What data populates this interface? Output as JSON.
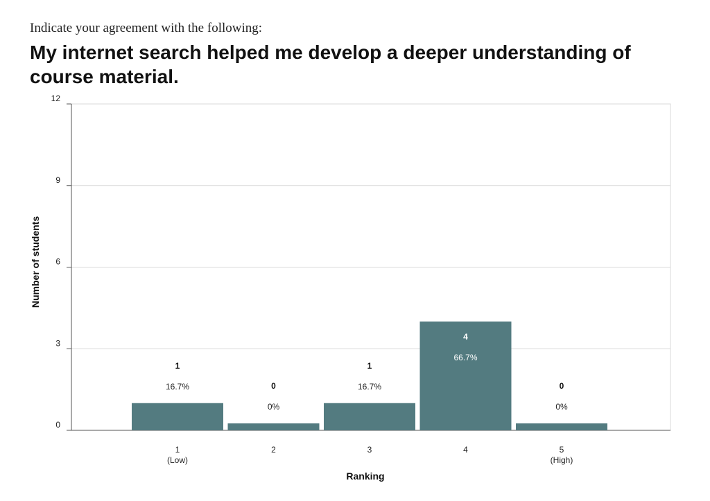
{
  "header": {
    "prompt": "Indicate your agreement with the following:",
    "question": "My internet search helped me develop a deeper understanding of course material."
  },
  "colors": {
    "bar": "#537b80",
    "grid": "#d9d9d9",
    "axis": "#555555"
  },
  "chart_data": {
    "type": "bar",
    "title": "My internet search helped me develop a deeper understanding of course material.",
    "xlabel": "Ranking",
    "ylabel": "Number of students",
    "categories": [
      "1",
      "2",
      "3",
      "4",
      "5"
    ],
    "category_sublabels": [
      "(Low)",
      "",
      "",
      "",
      "(High)"
    ],
    "values": [
      1,
      0,
      1,
      4,
      0
    ],
    "count_labels": [
      "1",
      "0",
      "1",
      "4",
      "0"
    ],
    "percent_labels": [
      "16.7%",
      "0%",
      "16.7%",
      "66.7%",
      "0%"
    ],
    "ylim": [
      0,
      12
    ],
    "yticks": [
      0,
      3,
      6,
      9,
      12
    ],
    "grid": true,
    "legend": "none"
  }
}
